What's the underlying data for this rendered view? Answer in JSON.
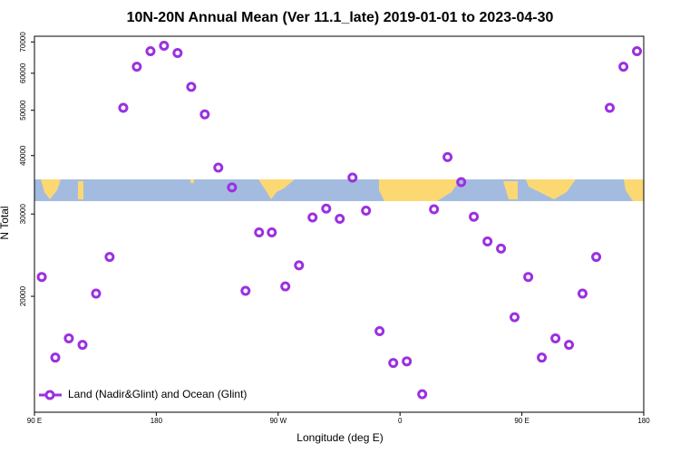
{
  "chart_data": {
    "type": "scatter",
    "title": "10N-20N Annual Mean (Ver 11.1_late)   2019-01-01 to 2023-04-30",
    "xlabel": "Longitude (deg E)",
    "ylabel": "N Total",
    "log_y": true,
    "legend": "bottom-left",
    "xlim": [
      90,
      540
    ],
    "ylim": [
      11300,
      72000
    ],
    "xticks": [
      {
        "value": 90,
        "label": "90 E"
      },
      {
        "value": 180,
        "label": "180"
      },
      {
        "value": 270,
        "label": "90 W"
      },
      {
        "value": 360,
        "label": "0"
      },
      {
        "value": 450,
        "label": "90 E"
      },
      {
        "value": 540,
        "label": "180"
      }
    ],
    "yticks": [
      20000,
      30000,
      40000,
      50000,
      60000,
      70000
    ],
    "series": [
      {
        "name": "Land (Nadir&Glint) and Ocean (Glint)",
        "color": "#9b30e0",
        "x": [
          95.4,
          105.4,
          115.4,
          125.5,
          135.5,
          145.5,
          155.6,
          165.6,
          175.7,
          185.7,
          195.7,
          205.8,
          215.8,
          225.8,
          235.9,
          245.9,
          255.9,
          265.3,
          275.3,
          285.4,
          295.4,
          305.5,
          315.5,
          324.9,
          334.9,
          344.9,
          355.0,
          365.0,
          376.4,
          385.1,
          395.1,
          405.2,
          414.5,
          424.6,
          434.6,
          444.6,
          454.7,
          464.7,
          474.8,
          484.8,
          494.8,
          504.9,
          514.9,
          525.0,
          535.0
        ],
        "values": [
          22000,
          14790,
          16260,
          15750,
          20270,
          24280,
          50600,
          61960,
          66900,
          68700,
          66300,
          56100,
          49000,
          37700,
          34200,
          20550,
          27400,
          27400,
          21000,
          23300,
          29500,
          30800,
          29300,
          35900,
          30500,
          16850,
          14400,
          14520,
          12350,
          30700,
          39700,
          35100,
          29600,
          26200,
          25300,
          18040,
          22000,
          14790,
          16260,
          15750,
          20270,
          24280,
          50600,
          61960,
          66900
        ]
      }
    ]
  }
}
